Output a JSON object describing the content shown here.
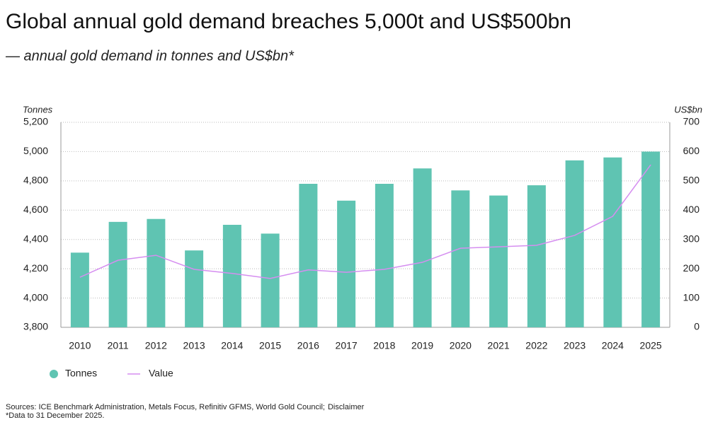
{
  "chart_data": {
    "type": "bar",
    "title": "Global annual gold demand breaches 5,000t and US$500bn",
    "subtitle": "— annual gold demand in tonnes and US$bn*",
    "ylabel": "Tonnes",
    "y2label": "US$bn",
    "categories": [
      "2010",
      "2011",
      "2012",
      "2013",
      "2014",
      "2015",
      "2016",
      "2017",
      "2018",
      "2019",
      "2020",
      "2021",
      "2022",
      "2023",
      "2024",
      "2025"
    ],
    "series": [
      {
        "name": "Tonnes",
        "type": "bar",
        "color": "#5fc4b2",
        "values": [
          4310,
          4520,
          4540,
          4325,
          4500,
          4440,
          4780,
          4665,
          4780,
          4885,
          4735,
          4700,
          4770,
          4940,
          4960,
          5000
        ]
      },
      {
        "name": "Value",
        "type": "line",
        "axis": "y2",
        "color": "#d58ef0",
        "values": [
          171,
          229,
          246,
          198,
          184,
          167,
          196,
          188,
          198,
          222,
          270,
          275,
          280,
          314,
          379,
          555
        ]
      }
    ],
    "ylim": [
      3800,
      5200
    ],
    "yticks": [
      {
        "value": 3800,
        "label": "3,800"
      },
      {
        "value": 4000,
        "label": "4,000"
      },
      {
        "value": 4200,
        "label": "4,200"
      },
      {
        "value": 4400,
        "label": "4,400"
      },
      {
        "value": 4600,
        "label": "4,600"
      },
      {
        "value": 4800,
        "label": "4,800"
      },
      {
        "value": 5000,
        "label": "5,000"
      },
      {
        "value": 5200,
        "label": "5,200"
      }
    ],
    "y2lim": [
      0,
      700
    ],
    "y2ticks": [
      0,
      100,
      200,
      300,
      400,
      500,
      600,
      700
    ],
    "grid": true,
    "sources": "Sources: ICE Benchmark Administration, Metals Focus, Refinitiv GFMS, World Gold Council;",
    "disclaimer": "Disclaimer",
    "footnote": "*Data to 31 December 2025."
  }
}
